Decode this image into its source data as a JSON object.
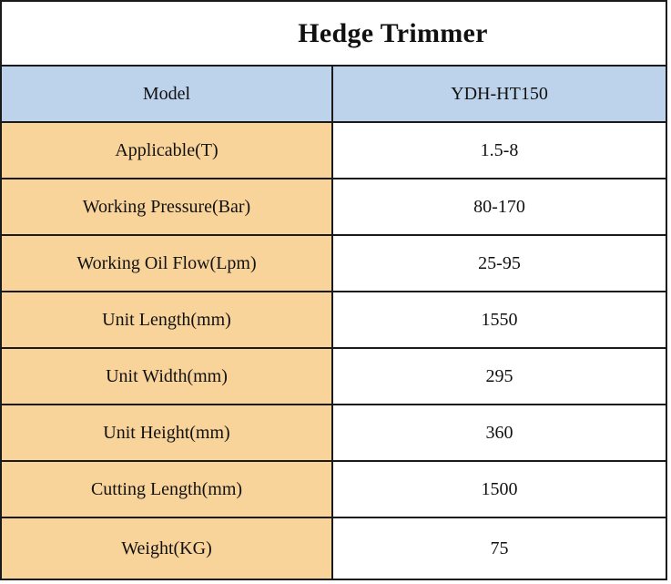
{
  "table": {
    "title": "Hedge Trimmer",
    "header": {
      "label": "Model",
      "value": "YDH-HT150"
    },
    "rows": [
      {
        "label": "Applicable(T)",
        "value": "1.5-8"
      },
      {
        "label": "Working Pressure(Bar)",
        "value": "80-170"
      },
      {
        "label": "Working Oil Flow(Lpm)",
        "value": "25-95"
      },
      {
        "label": "Unit Length(mm)",
        "value": "1550"
      },
      {
        "label": "Unit Width(mm)",
        "value": "295"
      },
      {
        "label": "Unit Height(mm)",
        "value": "360"
      },
      {
        "label": "Cutting Length(mm)",
        "value": "1500"
      },
      {
        "label": "Weight(KG)",
        "value": "75"
      }
    ]
  },
  "colors": {
    "header_fill": "#bcd3eb",
    "label_fill": "#f9d49a",
    "value_fill": "#ffffff",
    "border": "#1a1a1a"
  }
}
